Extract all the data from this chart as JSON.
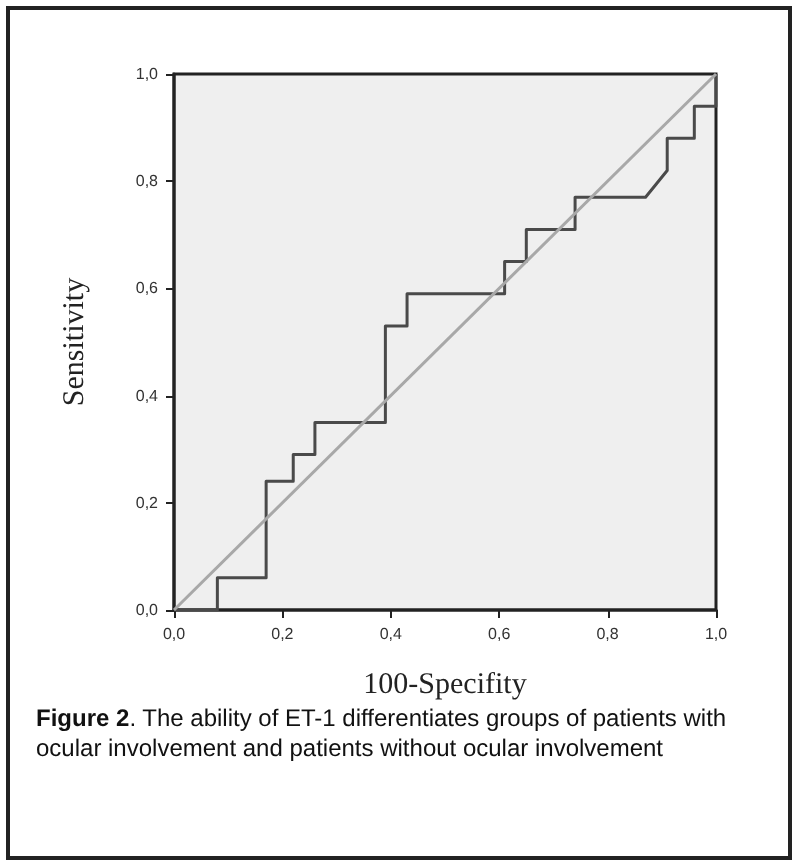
{
  "chart_data": {
    "type": "line",
    "xlabel": "100-Specifity",
    "ylabel": "Sensitivity",
    "x": [
      0,
      0.08,
      0.08,
      0.17,
      0.17,
      0.22,
      0.22,
      0.26,
      0.26,
      0.39,
      0.39,
      0.43,
      0.43,
      0.61,
      0.61,
      0.65,
      0.65,
      0.74,
      0.74,
      0.87,
      0.91,
      0.91,
      0.96,
      0.96,
      1,
      1
    ],
    "series": [
      {
        "color": "#4a4a4a",
        "values": [
          0,
          0,
          0.06,
          0.06,
          0.24,
          0.24,
          0.29,
          0.29,
          0.35,
          0.35,
          0.53,
          0.53,
          0.59,
          0.59,
          0.65,
          0.65,
          0.71,
          0.71,
          0.77,
          0.77,
          0.82,
          0.88,
          0.88,
          0.94,
          0.94,
          1
        ]
      },
      {
        "color": "#a8a8a8",
        "x": [
          0,
          1
        ],
        "values": [
          0,
          1
        ]
      }
    ],
    "xlim": [
      0,
      1
    ],
    "ylim": [
      0,
      1
    ],
    "xticks": [
      {
        "value": 0,
        "label": "0,0"
      },
      {
        "value": 0.2,
        "label": "0,2"
      },
      {
        "value": 0.4,
        "label": "0,4"
      },
      {
        "value": 0.6,
        "label": "0,6"
      },
      {
        "value": 0.8,
        "label": "0,8"
      },
      {
        "value": 1,
        "label": "1,0"
      }
    ],
    "yticks": [
      {
        "value": 0,
        "label": "0,0"
      },
      {
        "value": 0.2,
        "label": "0,2"
      },
      {
        "value": 0.4,
        "label": "0,4"
      },
      {
        "value": 0.6,
        "label": "0,6"
      },
      {
        "value": 0.8,
        "label": "0,8"
      },
      {
        "value": 1,
        "label": "1,0"
      }
    ],
    "marker": "none",
    "line_style": "solid",
    "grid": false,
    "annotations": [
      "Figure 2. The ability of ET-1 differentiates groups of patients with ocular involvement and patients without ocular involvement"
    ]
  }
}
